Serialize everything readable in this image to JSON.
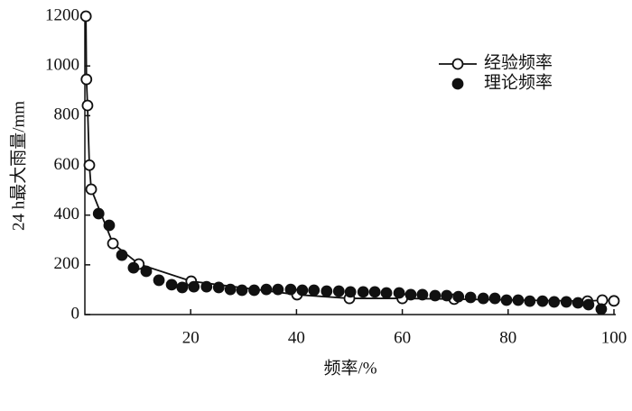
{
  "chart_data": {
    "type": "line",
    "xlabel": "频率/%",
    "ylabel": "24 h最大雨量/mm",
    "xlim": [
      0,
      100
    ],
    "ylim": [
      0,
      1200
    ],
    "xticks": [
      20,
      40,
      60,
      80,
      100
    ],
    "yticks": [
      0,
      200,
      400,
      600,
      800,
      1000,
      1200
    ],
    "legend": "upper right",
    "series": [
      {
        "name": "经验频率",
        "color": "#111111",
        "line": true,
        "marker": "open",
        "x": [
          0.2,
          0.3,
          0.5,
          0.85,
          1.2,
          5.3,
          10.2,
          20.1,
          40.1,
          50,
          60,
          69.8,
          95,
          97.8,
          100
        ],
        "values": [
          1200,
          946,
          841,
          601,
          504,
          286,
          203,
          134,
          80,
          65,
          65,
          62,
          54,
          58,
          55
        ]
      },
      {
        "name": "理论频率",
        "color": "#111111",
        "line": false,
        "marker": "filled",
        "x": [
          2.6,
          4.6,
          7,
          9.2,
          11.6,
          14,
          16.4,
          18.4,
          20.6,
          23,
          25.3,
          27.5,
          29.7,
          32,
          34.3,
          36.5,
          38.9,
          41.1,
          43.3,
          45.7,
          48,
          50.2,
          52.6,
          54.8,
          57,
          59.4,
          61.6,
          63.8,
          66.2,
          68.4,
          70.6,
          72.9,
          75.3,
          77.5,
          79.7,
          81.9,
          84.1,
          86.5,
          88.7,
          91,
          93.2,
          95.2,
          97.6
        ],
        "values": [
          406,
          359,
          239,
          188,
          174,
          138,
          120,
          109,
          112,
          112,
          109,
          101,
          98,
          98,
          101,
          101,
          101,
          98,
          98,
          94,
          94,
          91,
          91,
          91,
          87,
          87,
          80,
          80,
          76,
          76,
          72,
          69,
          65,
          65,
          58,
          58,
          54,
          54,
          51,
          51,
          47,
          40,
          22
        ]
      }
    ]
  }
}
